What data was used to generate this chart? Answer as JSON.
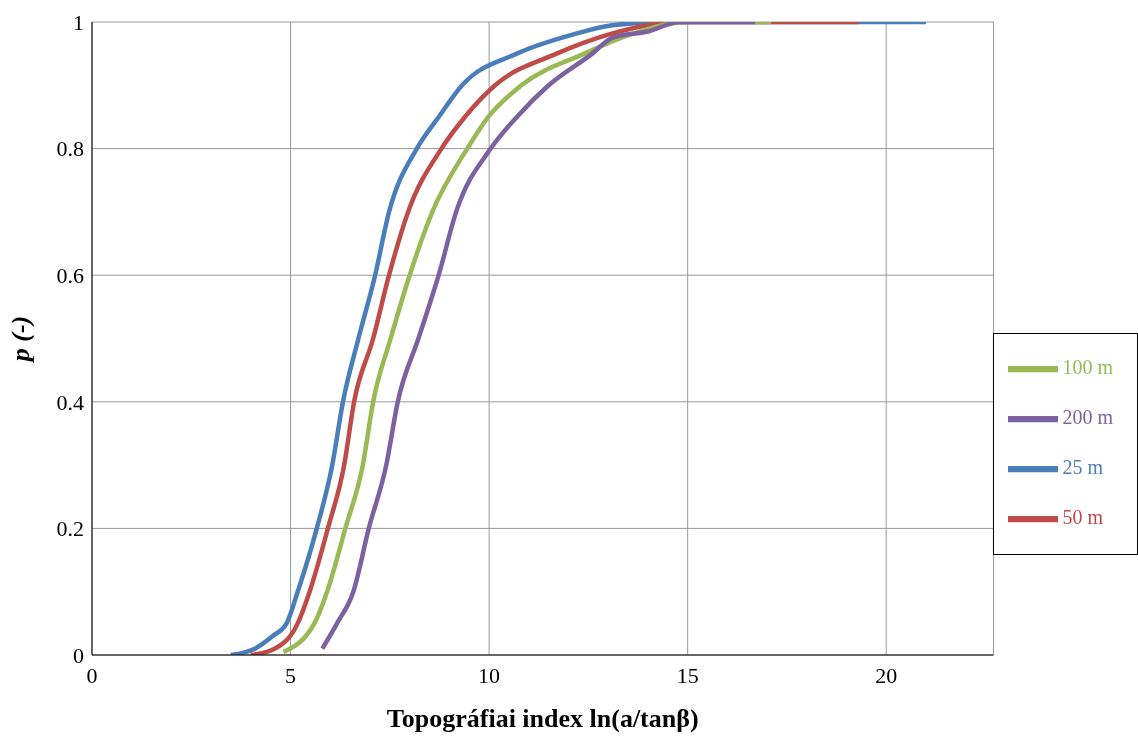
{
  "chart_data": {
    "type": "line",
    "xlabel": "Topográfiai index ln(a/tanβ)",
    "ylabel": "p (-)",
    "xlim": [
      0,
      22.7
    ],
    "xticks": [
      0,
      5,
      10,
      15,
      20
    ],
    "ylim": [
      0,
      1
    ],
    "yticks": [
      0,
      0.2,
      0.4,
      0.6,
      0.8,
      1
    ],
    "grid": true,
    "legend": "right",
    "marker": "none",
    "line_style": "solid",
    "series": [
      {
        "name": "25 m",
        "color": "#4a7ebb",
        "x": [
          3.5,
          4.1,
          4.55,
          4.9,
          5.18,
          5.66,
          6.05,
          6.32,
          6.71,
          7.13,
          7.48,
          8.18,
          8.73,
          9.32,
          10.7,
          12.1,
          13.1,
          14.5,
          21
        ],
        "values": [
          0,
          0.01,
          0.03,
          0.05,
          0.1,
          0.2,
          0.3,
          0.4,
          0.5,
          0.6,
          0.7,
          0.8,
          0.85,
          0.9,
          0.95,
          0.98,
          0.995,
          1,
          1
        ]
      },
      {
        "name": "50 m",
        "color": "#be4b48",
        "x": [
          4,
          4.6,
          5.18,
          5.48,
          5.94,
          6.35,
          6.6,
          7.08,
          7.48,
          7.96,
          8.8,
          9.39,
          10.15,
          11.7,
          13,
          14,
          15,
          19.3
        ],
        "values": [
          0,
          0.01,
          0.05,
          0.1,
          0.2,
          0.3,
          0.4,
          0.5,
          0.6,
          0.7,
          0.8,
          0.85,
          0.9,
          0.95,
          0.98,
          0.995,
          1,
          1
        ]
      },
      {
        "name": "100 m",
        "color": "#98b954",
        "x": [
          4.82,
          5.6,
          5.92,
          6.38,
          6.82,
          7.08,
          7.52,
          8,
          8.57,
          9.45,
          9.98,
          10.81,
          12.4,
          13.55,
          15,
          17.1
        ],
        "values": [
          0.005,
          0.05,
          0.1,
          0.2,
          0.3,
          0.4,
          0.5,
          0.6,
          0.7,
          0.8,
          0.85,
          0.9,
          0.95,
          0.98,
          1,
          1
        ]
      },
      {
        "name": "200 m",
        "color": "#7d60a0",
        "x": [
          5.8,
          6.17,
          6.58,
          6.97,
          7.41,
          7.7,
          8.22,
          8.73,
          9.17,
          10.04,
          10.7,
          11.5,
          12.6,
          13.1,
          14,
          14.8,
          16.7
        ],
        "values": [
          0.01,
          0.05,
          0.1,
          0.2,
          0.3,
          0.4,
          0.5,
          0.6,
          0.7,
          0.8,
          0.85,
          0.9,
          0.95,
          0.975,
          0.985,
          1,
          1
        ]
      }
    ]
  }
}
